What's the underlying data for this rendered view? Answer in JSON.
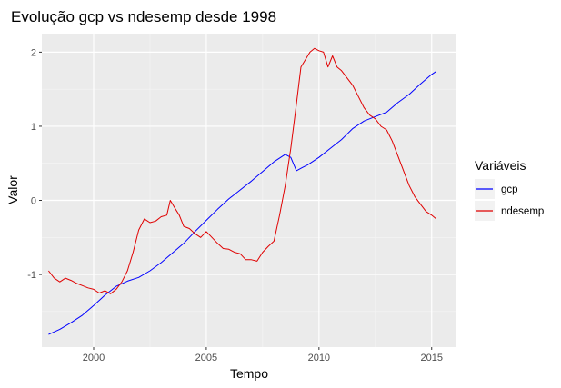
{
  "chart_data": {
    "type": "line",
    "title": "Evolução gcp vs ndesemp desde 1998",
    "xlabel": "Tempo",
    "ylabel": "Valor",
    "xlim": [
      1997.7,
      2016.1
    ],
    "ylim": [
      -1.98,
      2.25
    ],
    "x_ticks": [
      2000,
      2005,
      2010,
      2015
    ],
    "x_tick_labels": [
      "2000",
      "2005",
      "2010",
      "2015"
    ],
    "y_ticks": [
      -1,
      0,
      1,
      2
    ],
    "y_tick_labels": [
      "-1",
      "0",
      "1",
      "2"
    ],
    "grid": true,
    "legend": {
      "title": "Variáveis",
      "position": "right"
    },
    "series": [
      {
        "name": "gcp",
        "color": "#0000ff",
        "x": [
          1998.0,
          1998.5,
          1999.0,
          1999.5,
          2000.0,
          2000.5,
          2001.0,
          2001.5,
          2002.0,
          2002.5,
          2003.0,
          2003.5,
          2004.0,
          2004.5,
          2005.0,
          2005.5,
          2006.0,
          2006.5,
          2007.0,
          2007.5,
          2008.0,
          2008.5,
          2008.75,
          2009.0,
          2009.25,
          2009.5,
          2010.0,
          2010.5,
          2011.0,
          2011.5,
          2012.0,
          2012.5,
          2013.0,
          2013.5,
          2014.0,
          2014.5,
          2015.0,
          2015.2
        ],
        "values": [
          -1.81,
          -1.74,
          -1.65,
          -1.55,
          -1.42,
          -1.28,
          -1.16,
          -1.09,
          -1.04,
          -0.95,
          -0.84,
          -0.71,
          -0.58,
          -0.42,
          -0.27,
          -0.12,
          0.02,
          0.14,
          0.26,
          0.39,
          0.52,
          0.62,
          0.58,
          0.4,
          0.44,
          0.48,
          0.58,
          0.7,
          0.82,
          0.97,
          1.07,
          1.13,
          1.19,
          1.32,
          1.43,
          1.57,
          1.7,
          1.74
        ]
      },
      {
        "name": "ndesemp",
        "color": "#e00000",
        "x": [
          1998.0,
          1998.25,
          1998.5,
          1998.75,
          1999.0,
          1999.25,
          1999.5,
          1999.75,
          2000.0,
          2000.25,
          2000.5,
          2000.75,
          2001.0,
          2001.25,
          2001.5,
          2001.75,
          2002.0,
          2002.25,
          2002.5,
          2002.75,
          2003.0,
          2003.25,
          2003.4,
          2003.6,
          2003.8,
          2004.0,
          2004.25,
          2004.5,
          2004.75,
          2005.0,
          2005.25,
          2005.5,
          2005.75,
          2006.0,
          2006.25,
          2006.5,
          2006.75,
          2007.0,
          2007.25,
          2007.5,
          2007.75,
          2008.0,
          2008.25,
          2008.5,
          2008.75,
          2009.0,
          2009.2,
          2009.4,
          2009.6,
          2009.8,
          2010.0,
          2010.2,
          2010.4,
          2010.6,
          2010.8,
          2011.0,
          2011.25,
          2011.5,
          2011.75,
          2012.0,
          2012.25,
          2012.5,
          2012.75,
          2013.0,
          2013.25,
          2013.5,
          2013.75,
          2014.0,
          2014.25,
          2014.5,
          2014.75,
          2015.0,
          2015.2
        ],
        "values": [
          -0.95,
          -1.05,
          -1.1,
          -1.05,
          -1.08,
          -1.12,
          -1.15,
          -1.18,
          -1.2,
          -1.25,
          -1.22,
          -1.26,
          -1.2,
          -1.1,
          -0.95,
          -0.7,
          -0.4,
          -0.25,
          -0.3,
          -0.28,
          -0.22,
          -0.2,
          0.0,
          -0.1,
          -0.2,
          -0.35,
          -0.38,
          -0.45,
          -0.5,
          -0.42,
          -0.5,
          -0.58,
          -0.65,
          -0.66,
          -0.7,
          -0.72,
          -0.8,
          -0.8,
          -0.82,
          -0.7,
          -0.62,
          -0.55,
          -0.2,
          0.2,
          0.7,
          1.3,
          1.8,
          1.9,
          2.0,
          2.05,
          2.02,
          2.0,
          1.8,
          1.95,
          1.8,
          1.75,
          1.65,
          1.55,
          1.4,
          1.25,
          1.15,
          1.1,
          1.0,
          0.95,
          0.8,
          0.6,
          0.4,
          0.2,
          0.05,
          -0.05,
          -0.15,
          -0.2,
          -0.25
        ]
      }
    ]
  }
}
